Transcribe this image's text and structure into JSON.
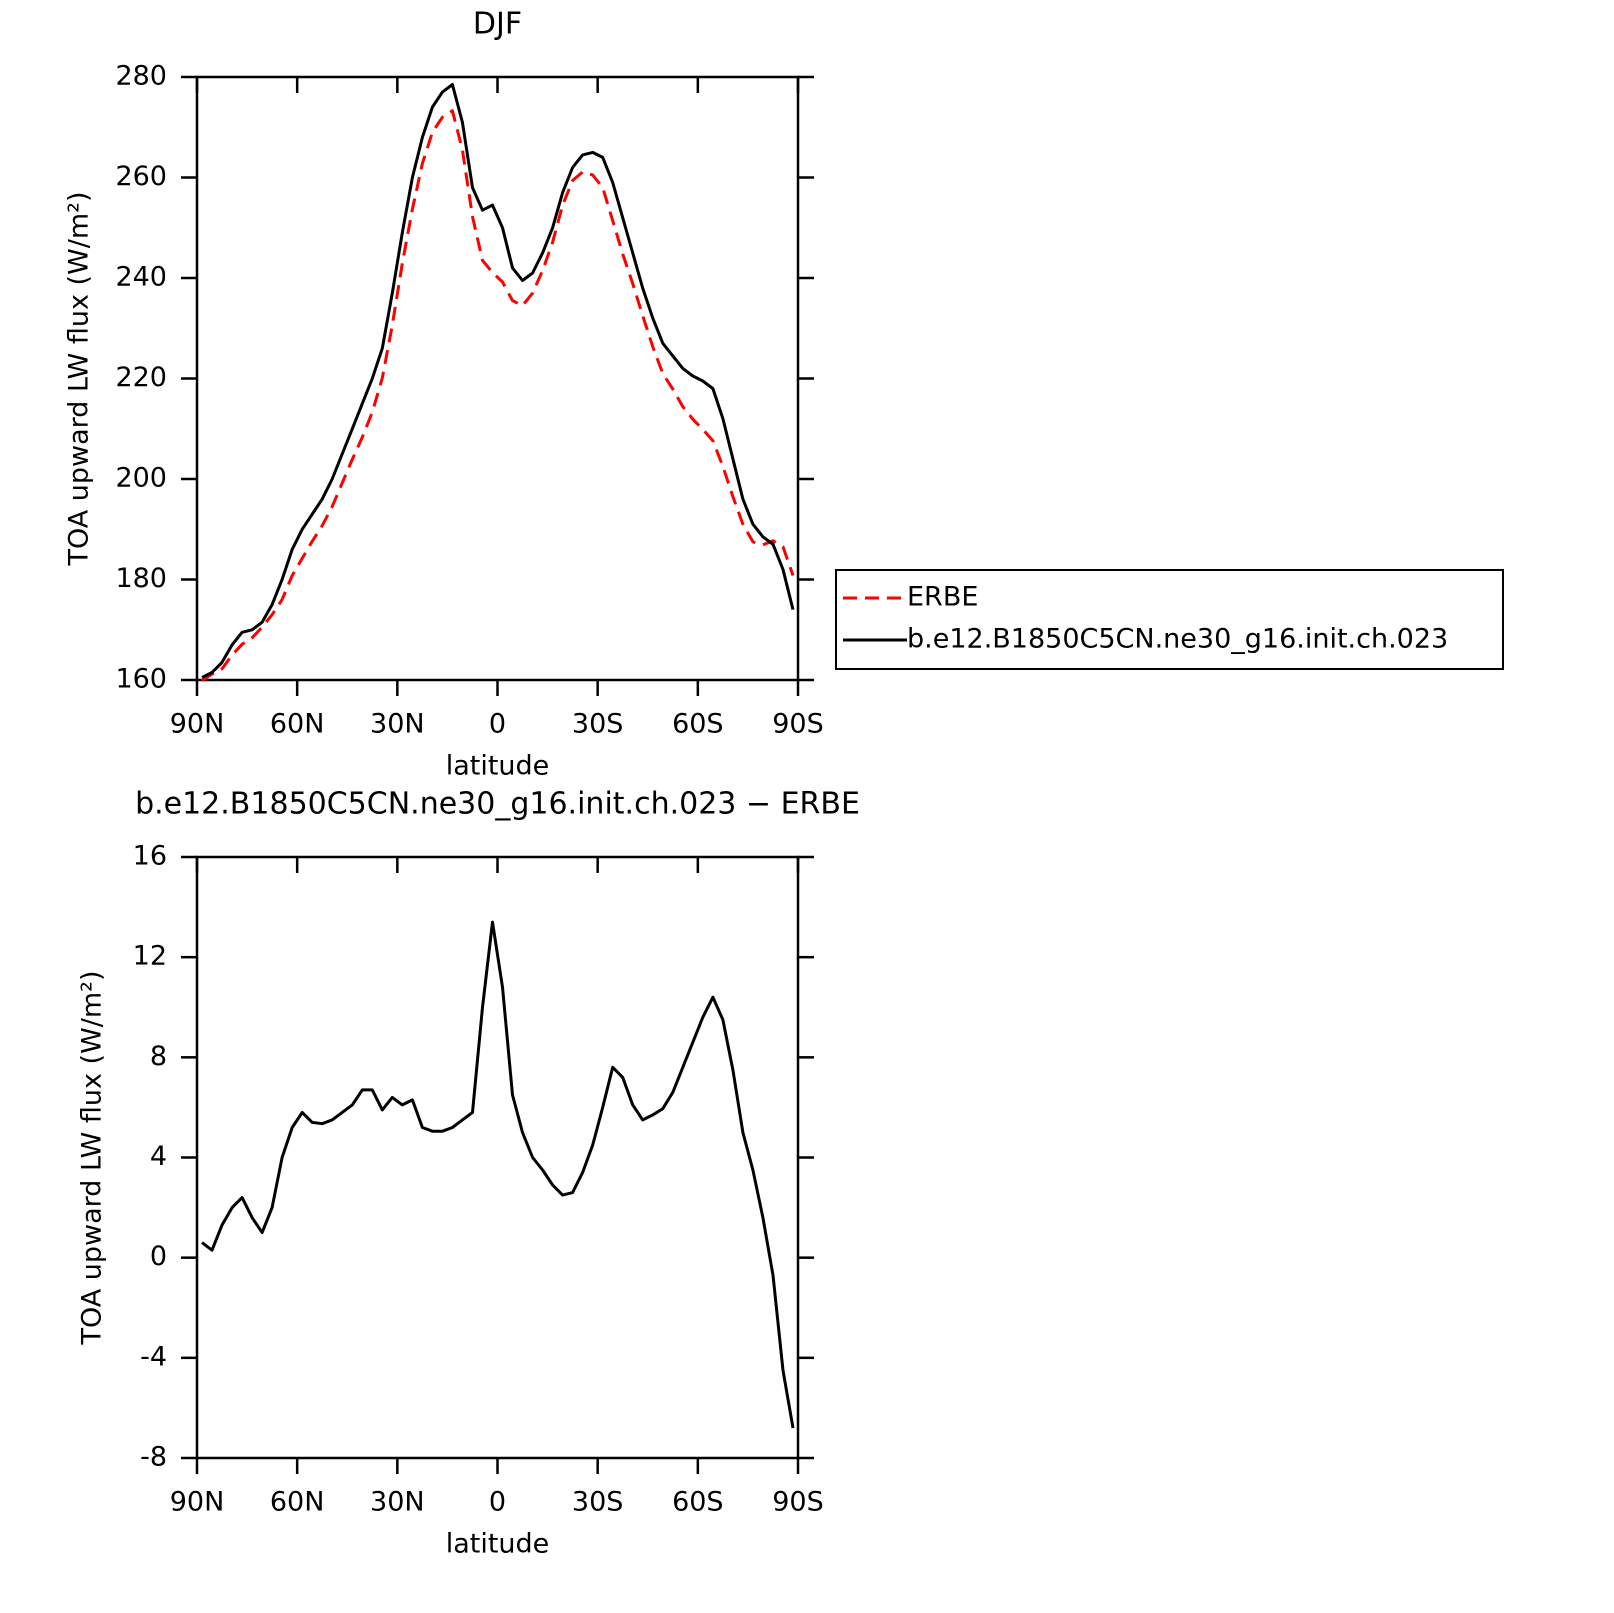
{
  "chart_data": [
    {
      "type": "line",
      "title": "DJF",
      "xlabel": "latitude",
      "ylabel": "TOA upward LW flux (W/m²)",
      "x": [
        88.5,
        85.5,
        82.5,
        79.5,
        76.5,
        73.5,
        70.5,
        67.5,
        64.5,
        61.5,
        58.5,
        55.5,
        52.5,
        49.5,
        46.5,
        43.5,
        40.5,
        37.5,
        34.5,
        31.5,
        28.5,
        25.5,
        22.5,
        19.5,
        16.5,
        13.5,
        10.5,
        7.5,
        4.5,
        1.5,
        -1.5,
        -4.5,
        -7.5,
        -10.5,
        -13.5,
        -16.5,
        -19.5,
        -22.5,
        -25.5,
        -28.5,
        -31.5,
        -34.5,
        -37.5,
        -40.5,
        -43.5,
        -46.5,
        -49.5,
        -52.5,
        -55.5,
        -58.5,
        -61.5,
        -64.5,
        -67.5,
        -70.5,
        -73.5,
        -76.5,
        -79.5,
        -82.5,
        -85.5,
        -88.5
      ],
      "series": [
        {
          "name": "ERBE",
          "color": "#ff0000",
          "style": "dashed",
          "values": [
            159.9,
            161.2,
            162.2,
            165,
            167.1,
            168.4,
            170.5,
            173,
            176,
            180.8,
            184.2,
            187.6,
            190.7,
            194.5,
            199.2,
            203.9,
            208.3,
            213.3,
            220.1,
            230.6,
            242.9,
            253.7,
            262.8,
            269,
            272,
            273.3,
            265.5,
            252.2,
            243.5,
            241.1,
            239.2,
            235.5,
            234.5,
            237,
            241.5,
            247.1,
            254.5,
            259.4,
            261.1,
            260.5,
            258,
            251.4,
            244.8,
            238.9,
            232.5,
            226.3,
            221,
            217.9,
            214.4,
            211.9,
            209.9,
            207.6,
            202.5,
            196.5,
            191,
            187.5,
            186.9,
            187.7,
            186.5,
            180.8
          ]
        },
        {
          "name": "b.e12.B1850C5CN.ne30_g16.init.ch.023",
          "color": "#000000",
          "style": "solid",
          "values": [
            160.5,
            161.5,
            163.5,
            167,
            169.5,
            170,
            171.5,
            175,
            180,
            186,
            190,
            193,
            196,
            200,
            205,
            210,
            215,
            220,
            226,
            237,
            249,
            260,
            268,
            274,
            277,
            278.5,
            271,
            258,
            253.5,
            254.5,
            250,
            242,
            239.5,
            241,
            245,
            250,
            257,
            262,
            264.5,
            265,
            264,
            259,
            252,
            245,
            238,
            232,
            227,
            224.5,
            222,
            220.5,
            219.5,
            218,
            212,
            204,
            196,
            191,
            188.5,
            187,
            182,
            174
          ]
        }
      ],
      "xlim": [
        90,
        -90
      ],
      "xticks": [
        {
          "value": 90,
          "label": "90N"
        },
        {
          "value": 60,
          "label": "60N"
        },
        {
          "value": 30,
          "label": "30N"
        },
        0,
        {
          "value": -30,
          "label": "30S"
        },
        {
          "value": -60,
          "label": "60S"
        },
        {
          "value": -90,
          "label": "90S"
        }
      ],
      "ylim": [
        160,
        280
      ],
      "yticks": [
        160,
        180,
        200,
        220,
        240,
        260,
        280
      ],
      "grid": false,
      "legend": "right"
    },
    {
      "type": "line",
      "title": "b.e12.B1850C5CN.ne30_g16.init.ch.023 − ERBE",
      "xlabel": "latitude",
      "ylabel": "TOA upward LW flux (W/m²)",
      "x": [
        88.5,
        85.5,
        82.5,
        79.5,
        76.5,
        73.5,
        70.5,
        67.5,
        64.5,
        61.5,
        58.5,
        55.5,
        52.5,
        49.5,
        46.5,
        43.5,
        40.5,
        37.5,
        34.5,
        31.5,
        28.5,
        25.5,
        22.5,
        19.5,
        16.5,
        13.5,
        10.5,
        7.5,
        4.5,
        1.5,
        -1.5,
        -4.5,
        -7.5,
        -10.5,
        -13.5,
        -16.5,
        -19.5,
        -22.5,
        -25.5,
        -28.5,
        -31.5,
        -34.5,
        -37.5,
        -40.5,
        -43.5,
        -46.5,
        -49.5,
        -52.5,
        -55.5,
        -58.5,
        -61.5,
        -64.5,
        -67.5,
        -70.5,
        -73.5,
        -76.5,
        -79.5,
        -82.5,
        -85.5,
        -88.5
      ],
      "color": "#000000",
      "values": [
        0.6,
        0.3,
        1.3,
        2.0,
        2.4,
        1.6,
        1.0,
        2.0,
        4.0,
        5.2,
        5.8,
        5.4,
        5.35,
        5.5,
        5.8,
        6.1,
        6.7,
        6.7,
        5.9,
        6.4,
        6.1,
        6.3,
        5.2,
        5.05,
        5.05,
        5.2,
        5.5,
        5.8,
        10,
        13.4,
        10.8,
        6.5,
        5.0,
        4.0,
        3.5,
        2.9,
        2.5,
        2.6,
        3.4,
        4.5,
        6.0,
        7.6,
        7.2,
        6.1,
        5.5,
        5.7,
        5.95,
        6.6,
        7.6,
        8.6,
        9.6,
        10.4,
        9.5,
        7.5,
        5.0,
        3.5,
        1.6,
        -0.7,
        -4.5,
        -6.8
      ],
      "xlim": [
        90,
        -90
      ],
      "xticks": [
        {
          "value": 90,
          "label": "90N"
        },
        {
          "value": 60,
          "label": "60N"
        },
        {
          "value": 30,
          "label": "30N"
        },
        0,
        {
          "value": -30,
          "label": "30S"
        },
        {
          "value": -60,
          "label": "60S"
        },
        {
          "value": -90,
          "label": "90S"
        }
      ],
      "ylim": [
        -8,
        16
      ],
      "yticks": [
        -8,
        -4,
        0,
        4,
        8,
        12,
        16
      ],
      "grid": false
    }
  ]
}
